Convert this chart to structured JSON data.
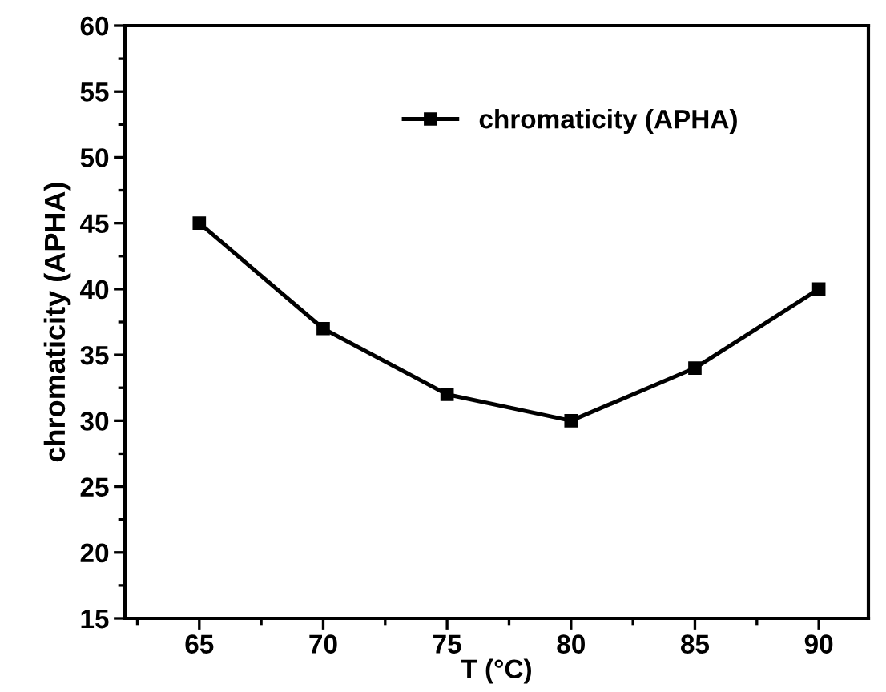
{
  "chart_data": {
    "type": "line",
    "xlabel": "T (°C)",
    "ylabel": "chromaticity (APHA)",
    "x": [
      65,
      70,
      75,
      80,
      85,
      90
    ],
    "series": [
      {
        "name": "chromaticity (APHA)",
        "color": "#000000",
        "values": [
          45,
          37,
          32,
          30,
          34,
          40
        ]
      }
    ],
    "xlim": [
      62,
      92
    ],
    "xticks": [
      65,
      70,
      75,
      80,
      85,
      90
    ],
    "ylim": [
      15,
      60
    ],
    "yticks": [
      15,
      20,
      25,
      30,
      35,
      40,
      45,
      50,
      55,
      60
    ],
    "marker": "square",
    "line_style": "solid",
    "legend": "top",
    "grid": false
  }
}
